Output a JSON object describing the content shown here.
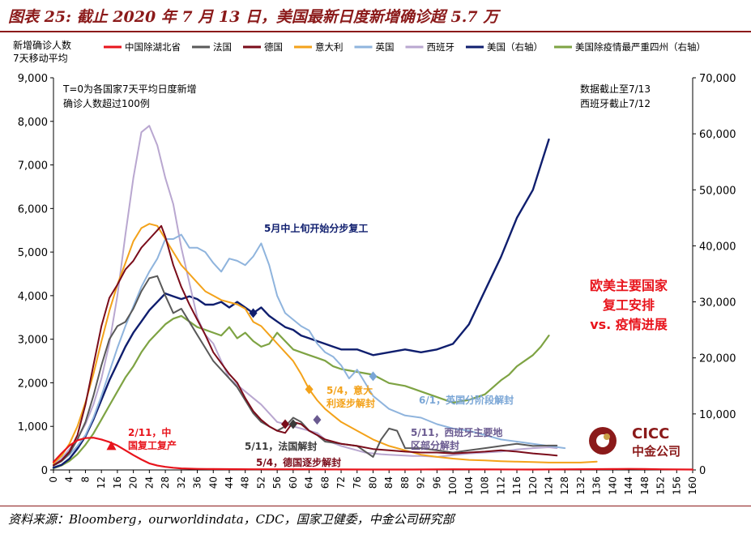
{
  "figure": {
    "title": "图表 25: 截止 2020 年 7 月 13 日，美国最新日度新增确诊超 5.7 万",
    "source": "资料来源：Bloomberg，ourworldindata，CDC，国家卫健委，中金公司研究部"
  },
  "logo": {
    "text_top": "CICC",
    "text_bottom": "中金公司"
  },
  "chart_data": {
    "type": "line",
    "ylabel_left": "新增确诊人数\n7天移动平均",
    "x_ticks": [
      0,
      4,
      8,
      12,
      16,
      20,
      24,
      28,
      32,
      36,
      40,
      44,
      48,
      52,
      56,
      60,
      64,
      68,
      72,
      76,
      80,
      84,
      88,
      92,
      96,
      100,
      104,
      108,
      112,
      116,
      120,
      124,
      128,
      132,
      136,
      140,
      144,
      148,
      152,
      156,
      160
    ],
    "xlim": [
      0,
      160
    ],
    "ylim_left": [
      0,
      9000
    ],
    "ylim_right": [
      0,
      70000
    ],
    "y_ticks_left": [
      0,
      1000,
      2000,
      3000,
      4000,
      5000,
      6000,
      7000,
      8000,
      9000
    ],
    "y_ticks_left_labels": [
      "0",
      "1,000",
      "2,000",
      "3,000",
      "4,000",
      "5,000",
      "6,000",
      "7,000",
      "8,000",
      "9,000"
    ],
    "y_ticks_right": [
      0,
      10000,
      20000,
      30000,
      40000,
      50000,
      60000,
      70000
    ],
    "y_ticks_right_labels": [
      "0",
      "10,000",
      "20,000",
      "30,000",
      "40,000",
      "50,000",
      "60,000",
      "70,000"
    ],
    "notes": {
      "left": [
        "T=0为各国家7天平均日度新增",
        "确诊人数超过100例"
      ],
      "right": [
        "数据截止至7/13",
        "西班牙截止7/12"
      ],
      "headline": [
        "欧美主要国家",
        "复工安排",
        "vs. 疫情进展"
      ]
    },
    "series": [
      {
        "key": "china",
        "name": "中国除湖北省",
        "color": "#e8141c",
        "axis": "left",
        "width": 2.2,
        "x": [
          0,
          2,
          4,
          6,
          8,
          10,
          12,
          14,
          16,
          18,
          20,
          22,
          24,
          26,
          28,
          30,
          32,
          36,
          40,
          50,
          60,
          70,
          80,
          90,
          100,
          110,
          120,
          130,
          140,
          144,
          148,
          152,
          156,
          160
        ],
        "y": [
          180,
          380,
          560,
          680,
          730,
          740,
          700,
          640,
          560,
          450,
          340,
          240,
          150,
          100,
          70,
          50,
          35,
          25,
          20,
          15,
          15,
          12,
          10,
          10,
          15,
          12,
          10,
          15,
          20,
          25,
          20,
          15,
          12,
          10
        ]
      },
      {
        "key": "spain",
        "name": "西班牙",
        "color": "#b9a7d0",
        "axis": "left",
        "width": 2,
        "x": [
          0,
          2,
          4,
          6,
          8,
          10,
          12,
          14,
          16,
          18,
          20,
          22,
          24,
          26,
          28,
          30,
          32,
          34,
          36,
          38,
          40,
          42,
          44,
          46,
          48,
          50,
          52,
          54,
          56,
          58,
          60,
          62,
          64,
          66,
          68,
          70,
          72,
          74,
          76,
          78,
          80,
          82,
          84,
          86,
          88,
          90,
          92,
          94,
          96,
          100,
          104,
          108,
          112,
          116,
          120,
          124,
          126
        ],
        "y": [
          120,
          260,
          480,
          720,
          1050,
          1500,
          2100,
          2900,
          4000,
          5400,
          6700,
          7750,
          7900,
          7450,
          6700,
          6100,
          5100,
          4300,
          3500,
          3100,
          2900,
          2500,
          2100,
          1950,
          1800,
          1650,
          1500,
          1300,
          1100,
          1050,
          1000,
          950,
          900,
          850,
          700,
          620,
          550,
          500,
          450,
          400,
          380,
          360,
          350,
          340,
          330,
          320,
          320,
          310,
          300,
          340,
          380,
          400,
          420,
          470,
          500,
          520,
          500
        ]
      },
      {
        "key": "germany",
        "name": "德国",
        "color": "#7a0c1a",
        "axis": "left",
        "width": 2,
        "x": [
          0,
          2,
          4,
          6,
          8,
          10,
          12,
          14,
          16,
          18,
          20,
          22,
          24,
          26,
          27,
          28,
          30,
          32,
          34,
          36,
          38,
          40,
          42,
          44,
          46,
          48,
          50,
          52,
          54,
          56,
          58,
          60,
          62,
          64,
          66,
          68,
          72,
          76,
          80,
          84,
          88,
          92,
          96,
          100,
          104,
          108,
          112,
          116,
          120,
          124,
          126
        ],
        "y": [
          110,
          220,
          420,
          800,
          1500,
          2400,
          3300,
          3950,
          4250,
          4600,
          4800,
          5100,
          5300,
          5500,
          5600,
          5350,
          4700,
          4200,
          3800,
          3450,
          3100,
          2700,
          2450,
          2200,
          2000,
          1650,
          1350,
          1150,
          1000,
          900,
          850,
          1100,
          1050,
          900,
          800,
          700,
          600,
          550,
          480,
          450,
          420,
          400,
          400,
          380,
          400,
          420,
          450,
          420,
          380,
          350,
          330
        ]
      },
      {
        "key": "france",
        "name": "法国",
        "color": "#595959",
        "axis": "left",
        "width": 2,
        "x": [
          0,
          2,
          4,
          6,
          8,
          10,
          12,
          14,
          16,
          18,
          20,
          22,
          24,
          26,
          28,
          30,
          32,
          34,
          36,
          38,
          40,
          42,
          44,
          46,
          48,
          50,
          52,
          54,
          56,
          58,
          60,
          62,
          64,
          66,
          68,
          72,
          76,
          80,
          82,
          84,
          86,
          88,
          92,
          96,
          100,
          104,
          108,
          112,
          116,
          120,
          124,
          126
        ],
        "y": [
          100,
          200,
          380,
          700,
          1100,
          1700,
          2400,
          3000,
          3300,
          3400,
          3700,
          4100,
          4400,
          4450,
          4000,
          3600,
          3700,
          3400,
          3100,
          2800,
          2500,
          2300,
          2100,
          1900,
          1600,
          1300,
          1100,
          1000,
          900,
          1000,
          1200,
          1100,
          900,
          800,
          650,
          600,
          550,
          300,
          700,
          950,
          900,
          500,
          500,
          450,
          400,
          450,
          500,
          550,
          600,
          550,
          560,
          560
        ]
      },
      {
        "key": "italy",
        "name": "意大利",
        "color": "#f3a21a",
        "axis": "left",
        "width": 2,
        "x": [
          0,
          2,
          4,
          6,
          8,
          10,
          12,
          14,
          16,
          18,
          20,
          22,
          24,
          26,
          28,
          30,
          32,
          34,
          36,
          38,
          40,
          42,
          44,
          46,
          48,
          50,
          52,
          54,
          56,
          58,
          60,
          62,
          64,
          66,
          68,
          70,
          72,
          76,
          80,
          84,
          88,
          92,
          96,
          100,
          104,
          108,
          112,
          116,
          120,
          124,
          128,
          132,
          136
        ],
        "y": [
          150,
          320,
          600,
          1000,
          1550,
          2200,
          2950,
          3650,
          4250,
          4750,
          5250,
          5550,
          5650,
          5600,
          5300,
          5000,
          4700,
          4500,
          4300,
          4100,
          4000,
          3900,
          3850,
          3800,
          3700,
          3400,
          3300,
          3100,
          2900,
          2700,
          2500,
          2200,
          1850,
          1600,
          1400,
          1250,
          1100,
          900,
          700,
          550,
          450,
          350,
          300,
          260,
          230,
          220,
          200,
          190,
          180,
          170,
          170,
          170,
          190
        ]
      },
      {
        "key": "uk",
        "name": "英国",
        "color": "#8fb4dd",
        "axis": "left",
        "width": 2,
        "x": [
          0,
          2,
          4,
          6,
          8,
          10,
          12,
          14,
          16,
          18,
          20,
          22,
          24,
          26,
          28,
          30,
          32,
          34,
          36,
          38,
          40,
          42,
          44,
          46,
          48,
          50,
          52,
          54,
          56,
          58,
          60,
          62,
          64,
          66,
          68,
          70,
          72,
          74,
          76,
          78,
          80,
          84,
          88,
          92,
          96,
          100,
          104,
          108,
          112,
          116,
          120,
          124,
          128
        ],
        "y": [
          100,
          200,
          350,
          550,
          800,
          1200,
          1700,
          2250,
          2800,
          3300,
          3750,
          4200,
          4550,
          4850,
          5300,
          5300,
          5400,
          5100,
          5100,
          5000,
          4750,
          4550,
          4850,
          4800,
          4700,
          4900,
          5200,
          4700,
          4000,
          3600,
          3450,
          3300,
          3200,
          2900,
          2700,
          2600,
          2400,
          2100,
          2300,
          2000,
          1700,
          1400,
          1250,
          1200,
          1050,
          950,
          900,
          800,
          700,
          650,
          600,
          550,
          500
        ]
      },
      {
        "key": "us_top4",
        "name": "美国除疫情最严重四州（右轴）",
        "color": "#7ea343",
        "axis": "right",
        "width": 2.2,
        "x": [
          0,
          2,
          4,
          6,
          8,
          10,
          12,
          14,
          16,
          18,
          20,
          22,
          24,
          26,
          28,
          30,
          32,
          34,
          36,
          38,
          40,
          42,
          44,
          46,
          48,
          50,
          52,
          54,
          56,
          58,
          60,
          62,
          64,
          66,
          68,
          70,
          72,
          76,
          80,
          84,
          88,
          92,
          96,
          100,
          104,
          108,
          112,
          114,
          116,
          118,
          120,
          122,
          124
        ],
        "y": [
          300,
          800,
          1600,
          2800,
          4500,
          6500,
          9000,
          11500,
          14000,
          16500,
          18500,
          21000,
          23000,
          24500,
          26000,
          27000,
          27500,
          26500,
          25500,
          25000,
          24500,
          24000,
          25500,
          23500,
          24500,
          23000,
          22000,
          22500,
          24500,
          23000,
          21500,
          21000,
          20500,
          20000,
          19500,
          18500,
          18000,
          17500,
          17000,
          15500,
          15000,
          14000,
          13000,
          12000,
          12500,
          13500,
          16000,
          17000,
          18500,
          19500,
          20500,
          22000,
          24000
        ]
      },
      {
        "key": "us",
        "name": "美国（右轴）",
        "color": "#0f1e6e",
        "axis": "right",
        "width": 2.4,
        "x": [
          0,
          2,
          4,
          6,
          8,
          10,
          12,
          14,
          16,
          18,
          20,
          22,
          24,
          26,
          28,
          30,
          32,
          34,
          36,
          38,
          40,
          42,
          44,
          46,
          48,
          50,
          52,
          54,
          56,
          58,
          60,
          62,
          64,
          66,
          68,
          70,
          72,
          74,
          76,
          78,
          80,
          84,
          88,
          92,
          96,
          100,
          104,
          108,
          112,
          116,
          120,
          124
        ],
        "y": [
          400,
          900,
          2000,
          3800,
          6000,
          9000,
          12500,
          16000,
          19000,
          22000,
          24500,
          26500,
          28500,
          30000,
          31500,
          31000,
          30500,
          31000,
          30500,
          29500,
          29500,
          30000,
          29000,
          30000,
          29000,
          28000,
          29000,
          27500,
          26500,
          25500,
          25000,
          24000,
          23500,
          23000,
          22500,
          22000,
          21500,
          21500,
          21500,
          21000,
          20500,
          21000,
          21500,
          21000,
          21500,
          22500,
          26000,
          32000,
          38000,
          45000,
          50000,
          59000
        ]
      }
    ],
    "annotations": [
      {
        "label": "2/11，中国复工复产",
        "color": "#e8141c",
        "marker_x": 14.5,
        "marker_y": 550,
        "marker": "triangle"
      },
      {
        "label": "5/4，意大利逐步解封",
        "color": "#f3a21a",
        "marker_x": 64,
        "marker_y": 1850,
        "marker": "diamond"
      },
      {
        "label": "5/11，法国解封",
        "color": "#3a3a3a",
        "marker_x": 60,
        "marker_y": 1050,
        "marker": "diamond"
      },
      {
        "label": "5/4，德国逐步解封",
        "color": "#7a0c1a",
        "marker_x": 58,
        "marker_y": 1050,
        "marker": "diamond"
      },
      {
        "label": "5/11，西班牙主要地区部分解封",
        "color": "#6a5a90",
        "marker_x": 66,
        "marker_y": 1150,
        "marker": "diamond"
      },
      {
        "label": "6/1，英国分阶段解封",
        "color": "#7aa6d6",
        "marker_x": 80,
        "marker_y": 2150,
        "marker": "diamond"
      },
      {
        "label": "5月中上旬开始分步复工",
        "color": "#0f1e6e",
        "marker_x": 50,
        "marker_y": 28000,
        "marker": "diamond"
      }
    ]
  }
}
